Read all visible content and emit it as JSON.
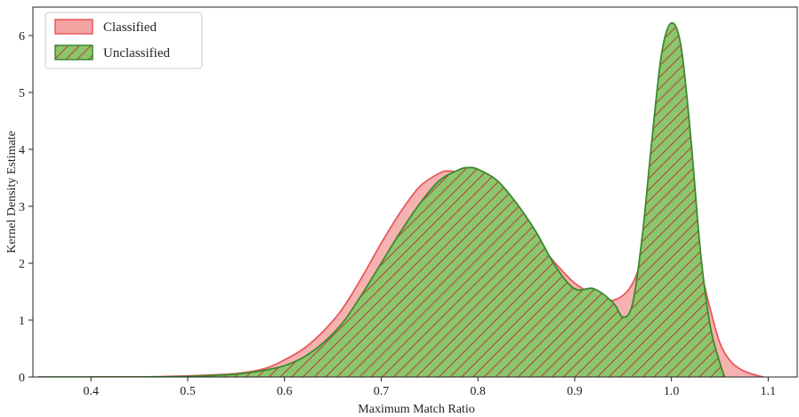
{
  "chart_data": {
    "type": "area",
    "xlabel": "Maximum Match Ratio",
    "ylabel": "Kernel Density Estimate",
    "xlim": [
      0.34,
      1.13
    ],
    "ylim": [
      0,
      6.5
    ],
    "xticks": [
      "0.4",
      "0.5",
      "0.6",
      "0.7",
      "0.8",
      "0.9",
      "1.0",
      "1.1"
    ],
    "yticks": [
      "0",
      "1",
      "2",
      "3",
      "4",
      "5",
      "6"
    ],
    "grid": false,
    "legend": {
      "position": "top-left"
    },
    "series": [
      {
        "name": "Classified",
        "fill": "#f5a3a3",
        "stroke": "#e8595a",
        "hatch": false,
        "points": [
          [
            0.4,
            0.0
          ],
          [
            0.45,
            0.0
          ],
          [
            0.5,
            0.02
          ],
          [
            0.55,
            0.06
          ],
          [
            0.58,
            0.15
          ],
          [
            0.6,
            0.3
          ],
          [
            0.62,
            0.5
          ],
          [
            0.64,
            0.8
          ],
          [
            0.66,
            1.2
          ],
          [
            0.68,
            1.75
          ],
          [
            0.7,
            2.35
          ],
          [
            0.72,
            2.9
          ],
          [
            0.74,
            3.35
          ],
          [
            0.76,
            3.58
          ],
          [
            0.77,
            3.62
          ],
          [
            0.78,
            3.58
          ],
          [
            0.8,
            3.4
          ],
          [
            0.82,
            3.1
          ],
          [
            0.84,
            2.75
          ],
          [
            0.86,
            2.4
          ],
          [
            0.88,
            2.0
          ],
          [
            0.9,
            1.65
          ],
          [
            0.92,
            1.45
          ],
          [
            0.94,
            1.35
          ],
          [
            0.96,
            1.65
          ],
          [
            0.98,
            2.6
          ],
          [
            0.99,
            3.0
          ],
          [
            1.0,
            3.12
          ],
          [
            1.01,
            3.0
          ],
          [
            1.02,
            2.6
          ],
          [
            1.03,
            1.9
          ],
          [
            1.04,
            1.2
          ],
          [
            1.05,
            0.6
          ],
          [
            1.06,
            0.3
          ],
          [
            1.07,
            0.15
          ],
          [
            1.08,
            0.07
          ],
          [
            1.09,
            0.02
          ],
          [
            1.095,
            0.0
          ]
        ]
      },
      {
        "name": "Unclassified",
        "fill": "#8cc66c",
        "stroke": "#3b8a2e",
        "hatch": true,
        "hatch_color": "#b0463c",
        "points": [
          [
            0.345,
            0.0
          ],
          [
            0.4,
            0.0
          ],
          [
            0.45,
            0.0
          ],
          [
            0.5,
            0.01
          ],
          [
            0.55,
            0.05
          ],
          [
            0.58,
            0.12
          ],
          [
            0.6,
            0.2
          ],
          [
            0.62,
            0.35
          ],
          [
            0.64,
            0.6
          ],
          [
            0.66,
            0.95
          ],
          [
            0.68,
            1.45
          ],
          [
            0.7,
            2.0
          ],
          [
            0.72,
            2.55
          ],
          [
            0.74,
            3.05
          ],
          [
            0.76,
            3.45
          ],
          [
            0.78,
            3.64
          ],
          [
            0.79,
            3.68
          ],
          [
            0.8,
            3.65
          ],
          [
            0.82,
            3.45
          ],
          [
            0.84,
            3.05
          ],
          [
            0.86,
            2.55
          ],
          [
            0.88,
            1.95
          ],
          [
            0.9,
            1.55
          ],
          [
            0.92,
            1.55
          ],
          [
            0.94,
            1.3
          ],
          [
            0.95,
            1.05
          ],
          [
            0.96,
            1.3
          ],
          [
            0.97,
            2.5
          ],
          [
            0.98,
            4.2
          ],
          [
            0.99,
            5.7
          ],
          [
            1.0,
            6.22
          ],
          [
            1.01,
            5.8
          ],
          [
            1.02,
            4.2
          ],
          [
            1.03,
            2.2
          ],
          [
            1.04,
            0.9
          ],
          [
            1.05,
            0.25
          ],
          [
            1.055,
            0.0
          ]
        ]
      }
    ]
  }
}
